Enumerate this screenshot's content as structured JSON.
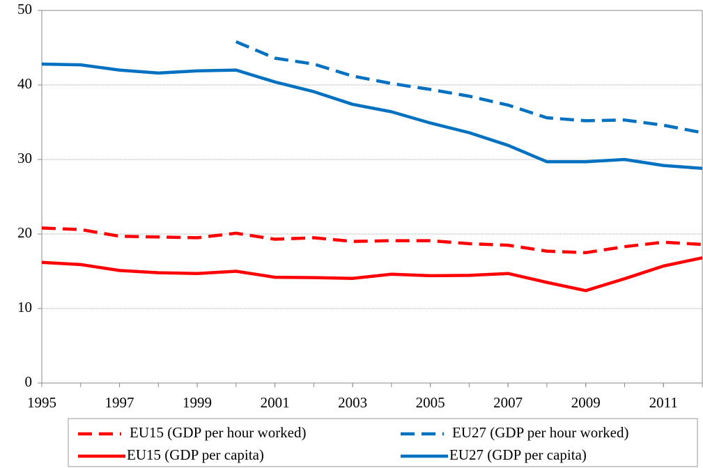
{
  "chart_data": {
    "type": "line",
    "x": [
      1995,
      1996,
      1997,
      1998,
      1999,
      2000,
      2001,
      2002,
      2003,
      2004,
      2005,
      2006,
      2007,
      2008,
      2009,
      2010,
      2011,
      2012
    ],
    "series": [
      {
        "name": "EU15 (GDP per hour worked)",
        "color": "#ff0000",
        "dashed": true,
        "values": [
          20.8,
          20.6,
          19.7,
          19.6,
          19.5,
          20.1,
          19.3,
          19.5,
          19.0,
          19.1,
          19.1,
          18.7,
          18.5,
          17.7,
          17.5,
          18.3,
          18.9,
          18.6
        ]
      },
      {
        "name": "EU27 (GDP per hour worked)",
        "color": "#0070c0",
        "dashed": true,
        "values": [
          null,
          null,
          null,
          null,
          null,
          45.8,
          43.6,
          42.8,
          41.2,
          40.2,
          39.4,
          38.5,
          37.3,
          35.6,
          35.2,
          35.3,
          34.6,
          33.6
        ]
      },
      {
        "name": "EU15 (GDP per capita)",
        "color": "#ff0000",
        "dashed": false,
        "values": [
          16.2,
          15.9,
          15.1,
          14.8,
          14.7,
          15.0,
          14.2,
          14.15,
          14.05,
          14.6,
          14.4,
          14.45,
          14.7,
          13.5,
          12.4,
          14.0,
          15.7,
          16.8
        ]
      },
      {
        "name": "EU27 (GDP per capita)",
        "color": "#0070c0",
        "dashed": false,
        "values": [
          42.8,
          42.7,
          42.0,
          41.6,
          41.9,
          42.0,
          40.4,
          39.1,
          37.4,
          36.4,
          34.9,
          33.6,
          31.9,
          29.7,
          29.7,
          30.0,
          29.2,
          28.8
        ]
      }
    ],
    "xlim": [
      1995,
      2012
    ],
    "xticks": [
      1995,
      1997,
      1999,
      2001,
      2003,
      2005,
      2007,
      2009,
      2011
    ],
    "ylim": [
      0,
      50
    ],
    "yticks": [
      0,
      10,
      20,
      30,
      40,
      50
    ],
    "grid": true
  }
}
